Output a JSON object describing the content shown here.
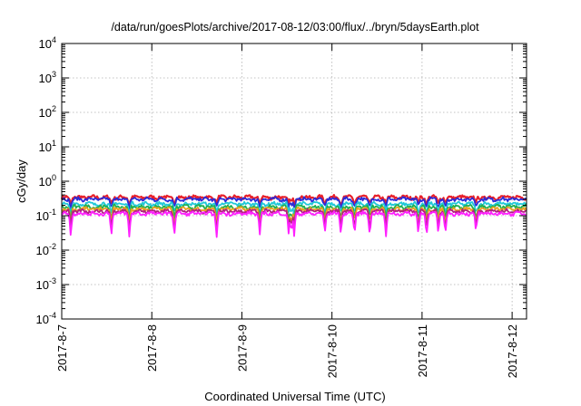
{
  "chart_data": {
    "type": "line",
    "title": "/data/run/goesPlots/archive/2017-08-12/03:00/flux/../bryn/5daysEarth.plot",
    "xlabel": "Coordinated Universal Time (UTC)",
    "ylabel": "cGy/day",
    "y_scale": "log",
    "ylim": [
      0.0001,
      10000
    ],
    "xlim_days": [
      0,
      5.16
    ],
    "grid": true,
    "legend": "none",
    "y_ticks": [
      {
        "base": "10",
        "exp": "4"
      },
      {
        "base": "10",
        "exp": "3"
      },
      {
        "base": "10",
        "exp": "2"
      },
      {
        "base": "10",
        "exp": "1"
      },
      {
        "base": "10",
        "exp": "0"
      },
      {
        "base": "10",
        "exp": "-1"
      },
      {
        "base": "10",
        "exp": "-2"
      },
      {
        "base": "10",
        "exp": "-3"
      },
      {
        "base": "10",
        "exp": "-4"
      }
    ],
    "x_ticks": [
      "2017-8-7",
      "2017-8-8",
      "2017-8-9",
      "2017-8-10",
      "2017-8-11",
      "2017-8-12"
    ],
    "series": [
      {
        "color": "#e8202a",
        "level": 0.34
      },
      {
        "color": "#2b2bd8",
        "level": 0.3
      },
      {
        "color": "#20c8d8",
        "level": 0.22
      },
      {
        "color": "#20b050",
        "level": 0.18
      },
      {
        "color": "#e8a020",
        "level": 0.155
      },
      {
        "color": "#b02080",
        "level": 0.135
      },
      {
        "color": "#ff20ff",
        "level": 0.115
      }
    ],
    "dip_days": [
      0.1,
      0.55,
      0.75,
      1.25,
      1.72,
      2.2,
      2.52,
      2.55,
      2.58,
      2.92,
      3.1,
      3.25,
      3.42,
      3.6,
      3.96,
      4.05,
      4.18,
      4.26,
      4.6
    ]
  }
}
